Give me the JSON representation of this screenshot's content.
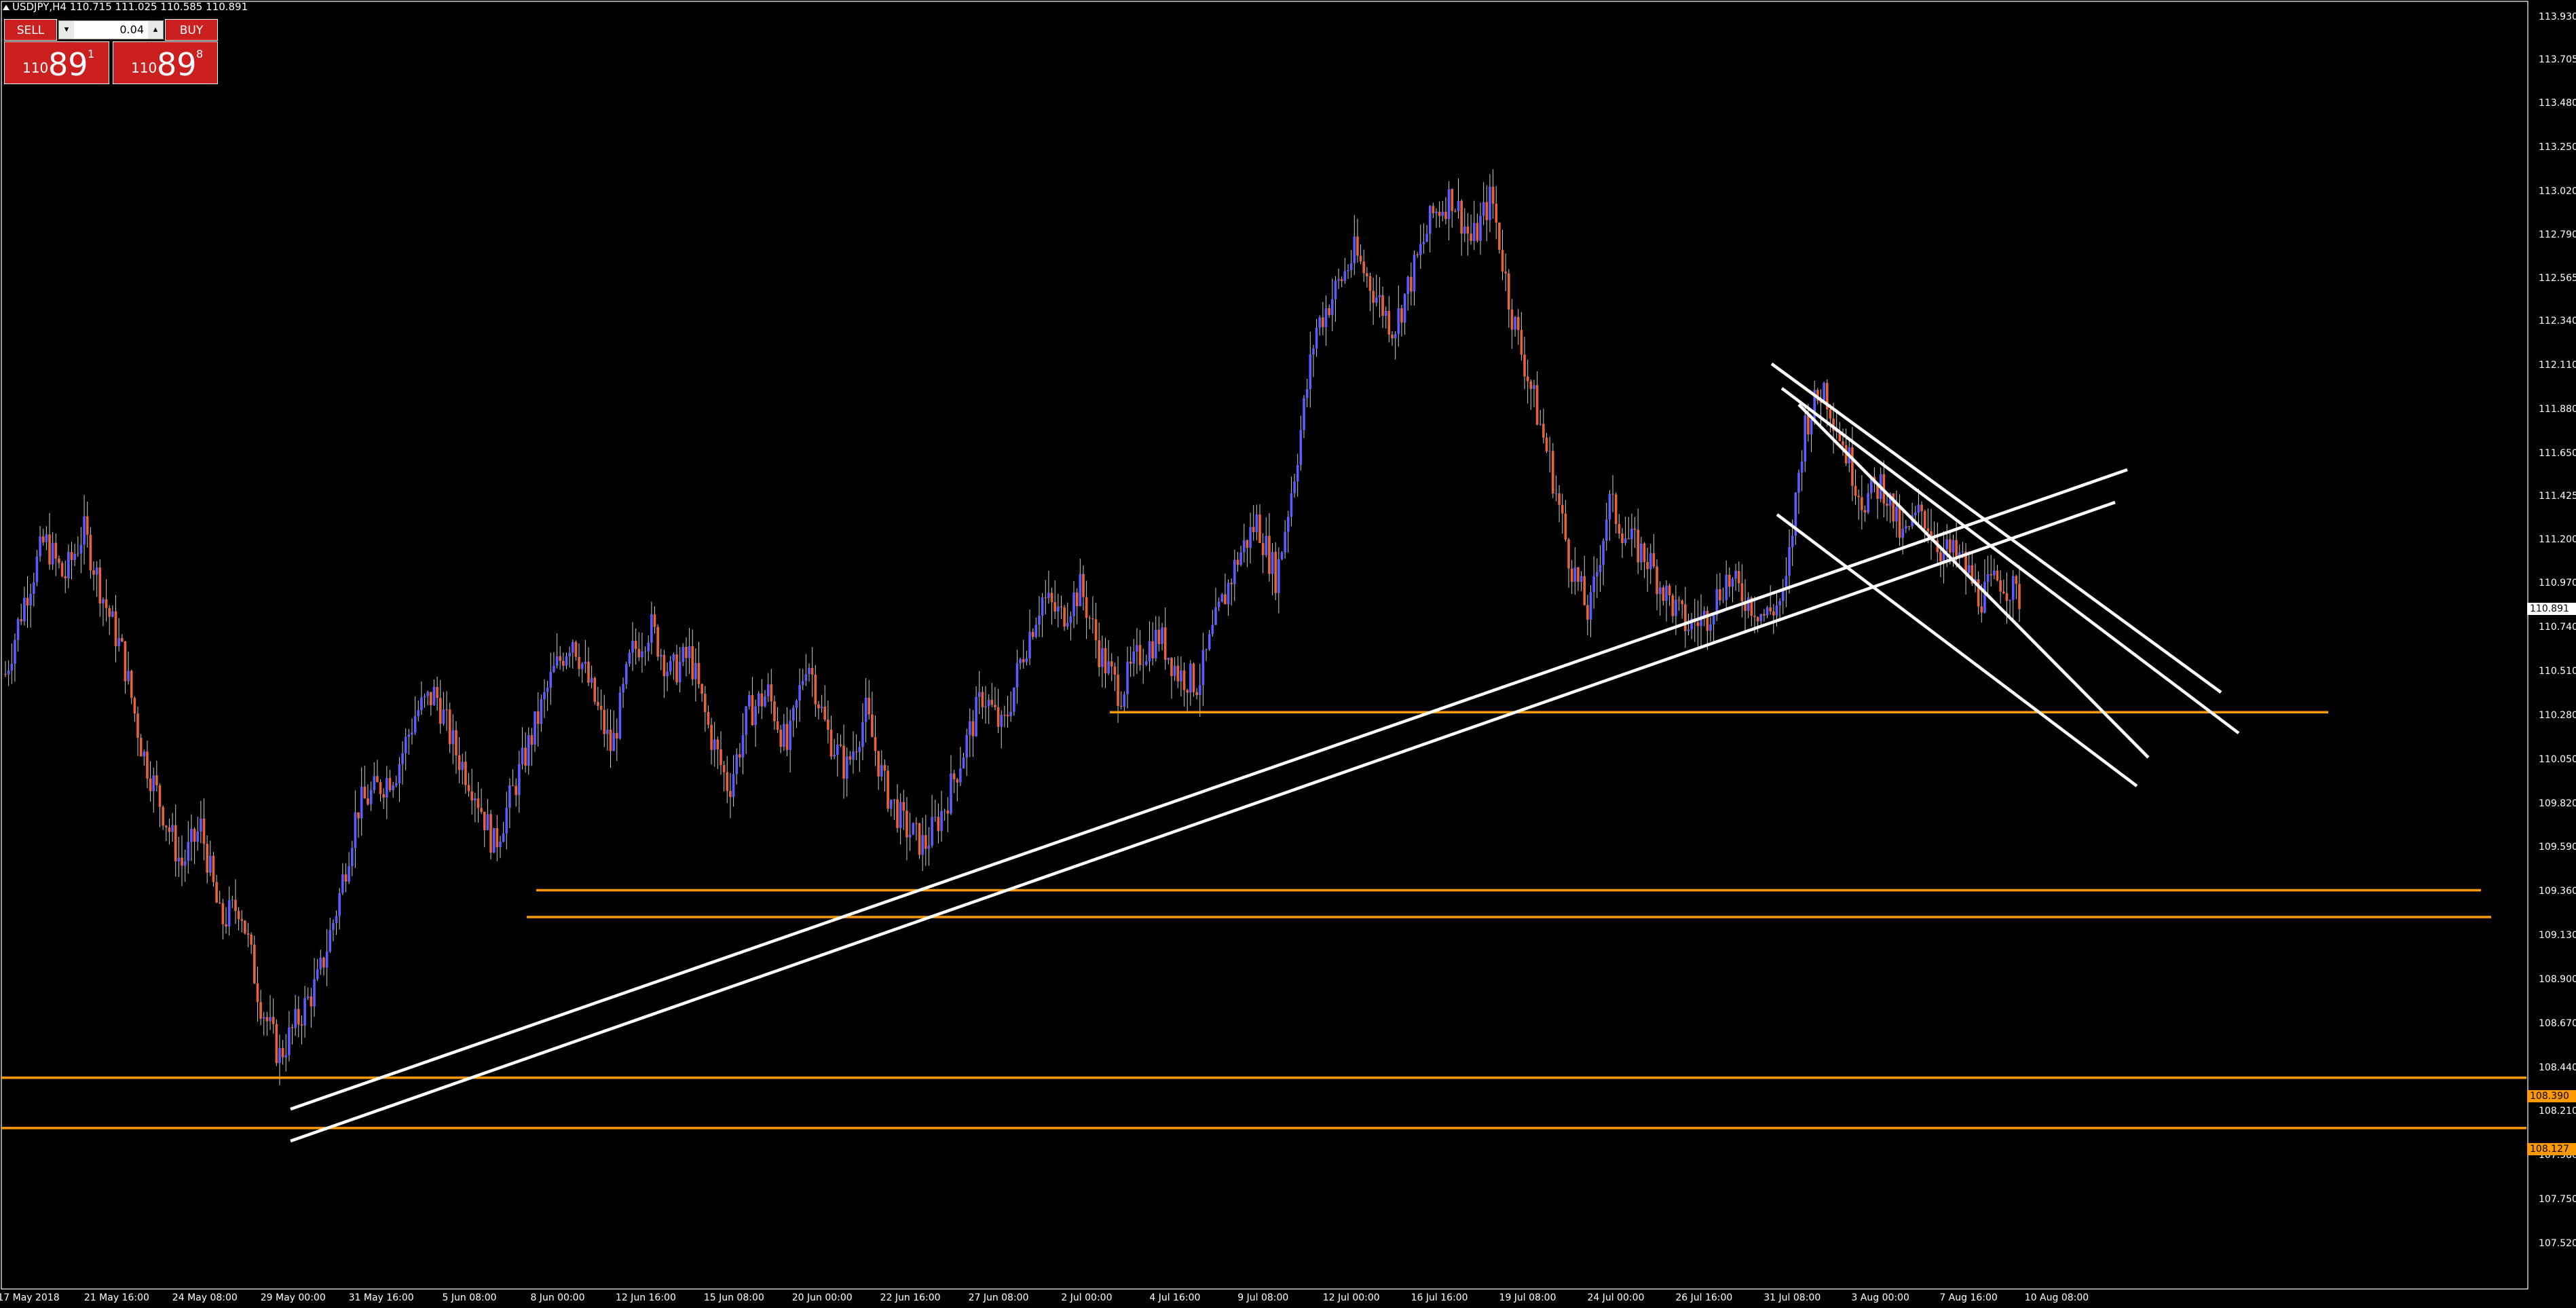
{
  "header": {
    "title": "USDJPY,H4  110.715 111.025 110.585 110.891"
  },
  "trade_panel": {
    "sell_label": "SELL",
    "buy_label": "BUY",
    "volume": "0.04",
    "down_arrow": "▾",
    "up_arrow": "▴",
    "sell_price": {
      "small": "110",
      "big": "89",
      "sup": "1"
    },
    "buy_price": {
      "small": "110",
      "big": "89",
      "sup": "8"
    }
  },
  "colors": {
    "background": "#000000",
    "bull_candle": "#5b5bff",
    "bear_candle": "#e8633a",
    "hline": "#ff9900",
    "trendline": "#ffffff",
    "sell_buy_panel": "#cc1f1f"
  },
  "y_axis": {
    "labels": [
      "113.930",
      "113.705",
      "113.480",
      "113.250",
      "113.020",
      "112.790",
      "112.565",
      "112.340",
      "112.110",
      "111.880",
      "111.650",
      "111.425",
      "111.200",
      "110.970",
      "110.740",
      "110.510",
      "110.280",
      "110.050",
      "109.820",
      "109.590",
      "109.360",
      "109.130",
      "108.900",
      "108.670",
      "108.440",
      "108.210",
      "107.980",
      "107.750",
      "107.520"
    ],
    "current_price_tag": "110.891",
    "hline_tag_1": "108.390",
    "hline_tag_2": "108.127"
  },
  "x_axis": {
    "labels": [
      "17 May 2018",
      "21 May 16:00",
      "24 May 08:00",
      "29 May 00:00",
      "31 May 16:00",
      "5 Jun 08:00",
      "8 Jun 00:00",
      "12 Jun 16:00",
      "15 Jun 08:00",
      "20 Jun 00:00",
      "22 Jun 16:00",
      "27 Jun 08:00",
      "2 Jul 00:00",
      "4 Jul 16:00",
      "9 Jul 08:00",
      "12 Jul 00:00",
      "16 Jul 16:00",
      "19 Jul 08:00",
      "24 Jul 00:00",
      "26 Jul 16:00",
      "31 Jul 08:00",
      "3 Aug 00:00",
      "7 Aug 16:00",
      "10 Aug 08:00"
    ]
  },
  "chart_data": {
    "type": "candlestick",
    "symbol": "USDJPY",
    "timeframe": "H4",
    "ohlc_header": {
      "open": 110.715,
      "high": 111.025,
      "low": 110.585,
      "close": 110.891
    },
    "ylim": [
      107.45,
      114.02
    ],
    "close_path": [
      110.5,
      110.9,
      111.2,
      111.0,
      111.25,
      110.9,
      110.6,
      110.1,
      109.8,
      109.5,
      109.7,
      109.2,
      109.3,
      108.8,
      108.5,
      108.7,
      108.9,
      109.3,
      109.8,
      109.9,
      110.0,
      110.3,
      110.4,
      110.1,
      109.9,
      109.6,
      109.9,
      110.2,
      110.5,
      110.7,
      110.4,
      110.1,
      110.6,
      110.75,
      110.5,
      110.6,
      110.2,
      109.9,
      110.3,
      110.4,
      110.1,
      110.6,
      110.2,
      110.0,
      110.3,
      109.9,
      109.7,
      109.6,
      109.8,
      110.1,
      110.4,
      110.2,
      110.6,
      110.9,
      110.8,
      110.95,
      110.6,
      110.4,
      110.6,
      110.7,
      110.5,
      110.45,
      110.8,
      111.1,
      111.3,
      111.0,
      111.6,
      112.3,
      112.5,
      112.7,
      112.5,
      112.3,
      112.6,
      112.9,
      113.0,
      112.75,
      113.0,
      112.4,
      112.0,
      111.6,
      111.1,
      110.8,
      111.4,
      111.2,
      111.1,
      110.9,
      110.75,
      110.8,
      111.0,
      110.9,
      110.8,
      110.9,
      111.8,
      112.0,
      111.7,
      111.4,
      111.5,
      111.2,
      111.35,
      111.15,
      111.1,
      110.9,
      111.0,
      110.9
    ],
    "horizontal_levels": [
      110.3,
      109.37,
      109.23,
      108.39,
      108.127
    ],
    "current_price": 110.891
  }
}
